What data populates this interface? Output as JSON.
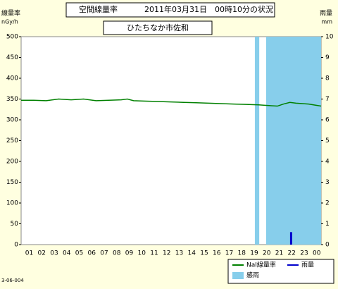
{
  "chart_data": {
    "type": "line",
    "title": "空間線量率",
    "date_text": "2011年03月31日　00時10分の状況",
    "subtitle": "ひたちなか市佐和",
    "y_label": "線量率",
    "y_unit": "nGy/h",
    "y2_label": "雨量",
    "y2_unit": "mm",
    "footnote": "3-06-004",
    "categories": [
      "01",
      "02",
      "03",
      "04",
      "05",
      "06",
      "07",
      "08",
      "09",
      "10",
      "11",
      "12",
      "13",
      "14",
      "15",
      "16",
      "17",
      "18",
      "19",
      "20",
      "21",
      "22",
      "23",
      "00"
    ],
    "xlim": [
      0,
      24
    ],
    "ylim": [
      0,
      500
    ],
    "yticks": [
      0,
      50,
      100,
      150,
      200,
      250,
      300,
      350,
      400,
      450,
      500
    ],
    "y2lim": [
      0,
      10
    ],
    "y2ticks": [
      0,
      1,
      2,
      3,
      4,
      5,
      6,
      7,
      8,
      9,
      10
    ],
    "series": [
      {
        "name": "NaI線量率",
        "type": "line",
        "color": "#008000",
        "x": [
          0,
          1,
          2,
          3,
          4,
          5,
          6,
          7,
          8,
          8.5,
          9,
          10,
          11,
          12,
          13,
          14,
          15,
          16,
          17,
          18,
          19,
          19.5,
          20,
          20.5,
          21,
          21.5,
          22,
          23,
          24
        ],
        "values": [
          347,
          347,
          346,
          350,
          348,
          350,
          346,
          347,
          348,
          350,
          346,
          345,
          344,
          343,
          342,
          341,
          340,
          339,
          338,
          337,
          336,
          335,
          334,
          333,
          338,
          342,
          340,
          338,
          333
        ]
      },
      {
        "name": "雨量",
        "type": "bar",
        "axis": "y2",
        "color": "#0000cc",
        "x": [
          21.6
        ],
        "values": [
          0.6
        ]
      }
    ],
    "rain_sense": {
      "name": "感雨",
      "color": "#87ceeb",
      "periods": [
        [
          18.7,
          19.05
        ],
        [
          19.6,
          24
        ]
      ]
    }
  }
}
